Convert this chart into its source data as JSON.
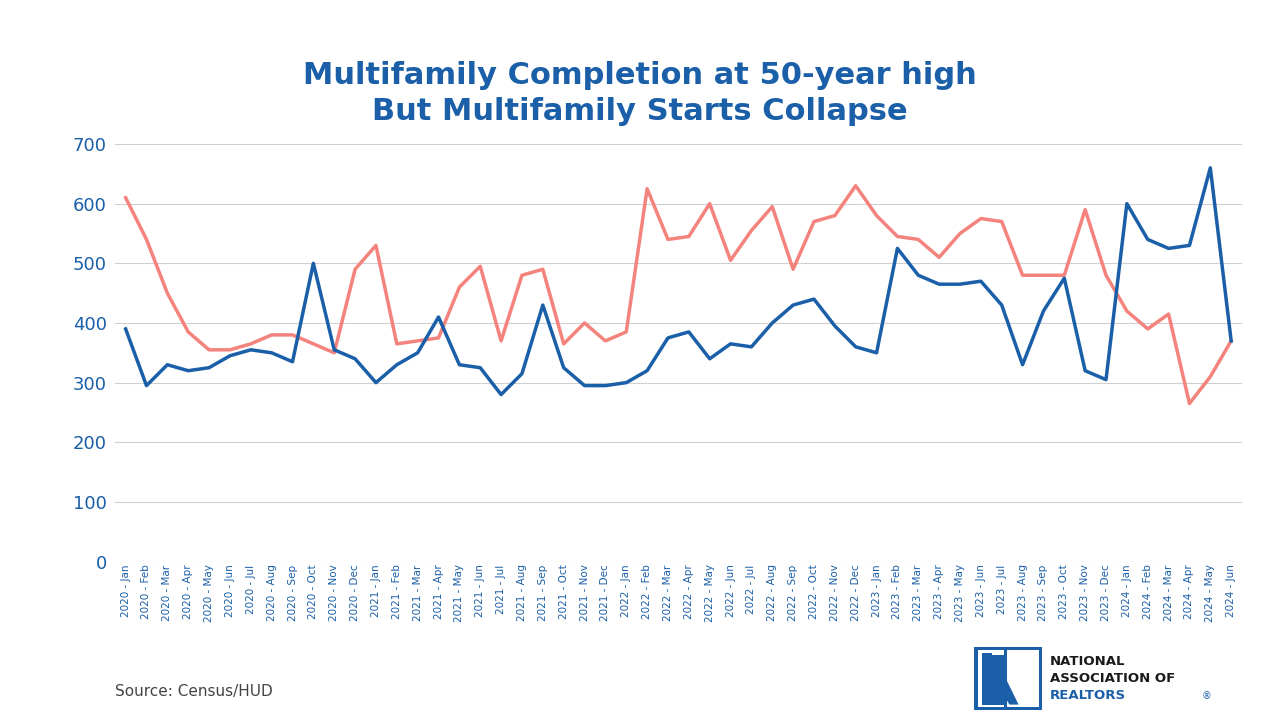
{
  "title_line1": "Multifamily Completion at 50-year high",
  "title_line2": "But Multifamily Starts Collapse",
  "title_color": "#1a5fa8",
  "source_text": "Source: Census/HUD",
  "labels": [
    "2020 - Jan",
    "2020 - Feb",
    "2020 - Mar",
    "2020 - Apr",
    "2020 - May",
    "2020 - Jun",
    "2020 - Jul",
    "2020 - Aug",
    "2020 - Sep",
    "2020 - Oct",
    "2020 - Nov",
    "2020 - Dec",
    "2021 - Jan",
    "2021 - Feb",
    "2021 - Mar",
    "2021 - Apr",
    "2021 - May",
    "2021 - Jun",
    "2021 - Jul",
    "2021 - Aug",
    "2021 - Sep",
    "2021 - Oct",
    "2021 - Nov",
    "2021 - Dec",
    "2022 - Jan",
    "2022 - Feb",
    "2022 - Mar",
    "2022 - Apr",
    "2022 - May",
    "2022 - Jun",
    "2022 - Jul",
    "2022 - Aug",
    "2022 - Sep",
    "2022 - Oct",
    "2022 - Nov",
    "2022 - Dec",
    "2023 - Jan",
    "2023 - Feb",
    "2023 - Mar",
    "2023 - Apr",
    "2023 - May",
    "2023 - Jun",
    "2023 - Jul",
    "2023 - Aug",
    "2023 - Sep",
    "2023 - Oct",
    "2023 - Nov",
    "2023 - Dec",
    "2024 - Jan",
    "2024 - Feb",
    "2024 - Mar",
    "2024 - Apr",
    "2024 - May",
    "2024 - Jun"
  ],
  "completions": [
    390,
    295,
    330,
    320,
    325,
    345,
    355,
    350,
    335,
    500,
    355,
    340,
    300,
    330,
    350,
    410,
    330,
    325,
    280,
    315,
    430,
    325,
    295,
    295,
    300,
    320,
    375,
    385,
    340,
    365,
    360,
    400,
    430,
    440,
    395,
    360,
    350,
    525,
    480,
    465,
    465,
    470,
    430,
    330,
    420,
    475,
    320,
    305,
    600,
    540,
    525,
    530,
    660,
    370
  ],
  "starts": [
    610,
    540,
    450,
    385,
    355,
    355,
    365,
    380,
    380,
    365,
    350,
    490,
    530,
    365,
    370,
    375,
    460,
    495,
    370,
    480,
    490,
    365,
    400,
    370,
    385,
    625,
    540,
    545,
    600,
    505,
    555,
    595,
    490,
    570,
    580,
    630,
    580,
    545,
    540,
    510,
    550,
    575,
    570,
    480,
    480,
    480,
    590,
    480,
    420,
    390,
    415,
    265,
    310,
    370
  ],
  "completion_color": "#1a5fa8",
  "starts_color": "#f4837d",
  "line_width": 2.5,
  "ylim": [
    0,
    700
  ],
  "yticks": [
    0,
    100,
    200,
    300,
    400,
    500,
    600,
    700
  ],
  "background_color": "#ffffff",
  "grid_color": "#d0d0d0"
}
